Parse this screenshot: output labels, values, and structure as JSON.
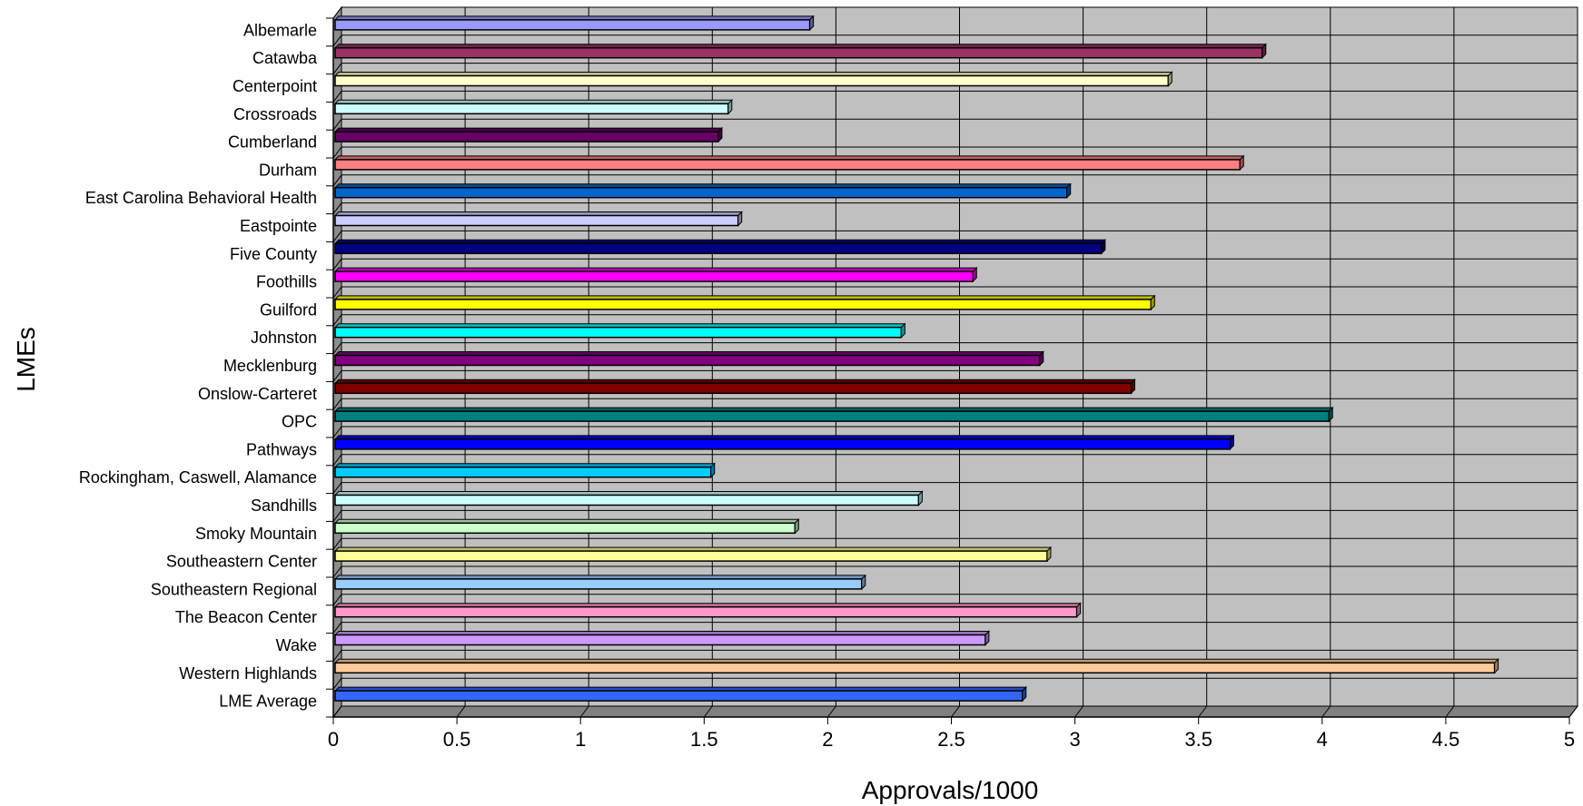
{
  "chart_data": {
    "type": "bar",
    "orientation": "horizontal",
    "style": "3d",
    "xlabel": "Approvals/1000",
    "ylabel": "LMEs",
    "xlim": [
      0,
      5
    ],
    "xticks": [
      "0",
      "0.5",
      "1",
      "1.5",
      "2",
      "2.5",
      "3",
      "3.5",
      "4",
      "4.5",
      "5"
    ],
    "grid": true,
    "legend": "none",
    "plot_background": "#c0c0c0",
    "categories": [
      "Albemarle",
      "Catawba",
      "Centerpoint",
      "Crossroads",
      "Cumberland",
      "Durham",
      "East Carolina Behavioral Health",
      "Eastpointe",
      "Five County",
      "Foothills",
      "Guilford",
      "Johnston",
      "Mecklenburg",
      "Onslow-Carteret",
      "OPC",
      "Pathways",
      "Rockingham, Caswell, Alamance",
      "Sandhills",
      "Smoky Mountain",
      "Southeastern Center",
      "Southeastern Regional",
      "The Beacon Center",
      "Wake",
      "Western Highlands",
      "LME Average"
    ],
    "values": [
      1.92,
      3.75,
      3.37,
      1.59,
      1.55,
      3.66,
      2.96,
      1.63,
      3.1,
      2.58,
      3.3,
      2.29,
      2.85,
      3.22,
      4.02,
      3.62,
      1.52,
      2.36,
      1.86,
      2.88,
      2.13,
      3.0,
      2.63,
      4.69,
      2.78
    ],
    "colors": [
      "#9999ff",
      "#993366",
      "#ffffcc",
      "#ccffff",
      "#660066",
      "#ff8080",
      "#0066cc",
      "#ccccff",
      "#000080",
      "#ff00ff",
      "#ffff00",
      "#00ffff",
      "#800080",
      "#800000",
      "#008080",
      "#0000ff",
      "#00ccff",
      "#ccffff",
      "#ccffcc",
      "#ffff99",
      "#99ccff",
      "#ff99cc",
      "#cc99ff",
      "#ffcc99",
      "#3366ff"
    ]
  }
}
